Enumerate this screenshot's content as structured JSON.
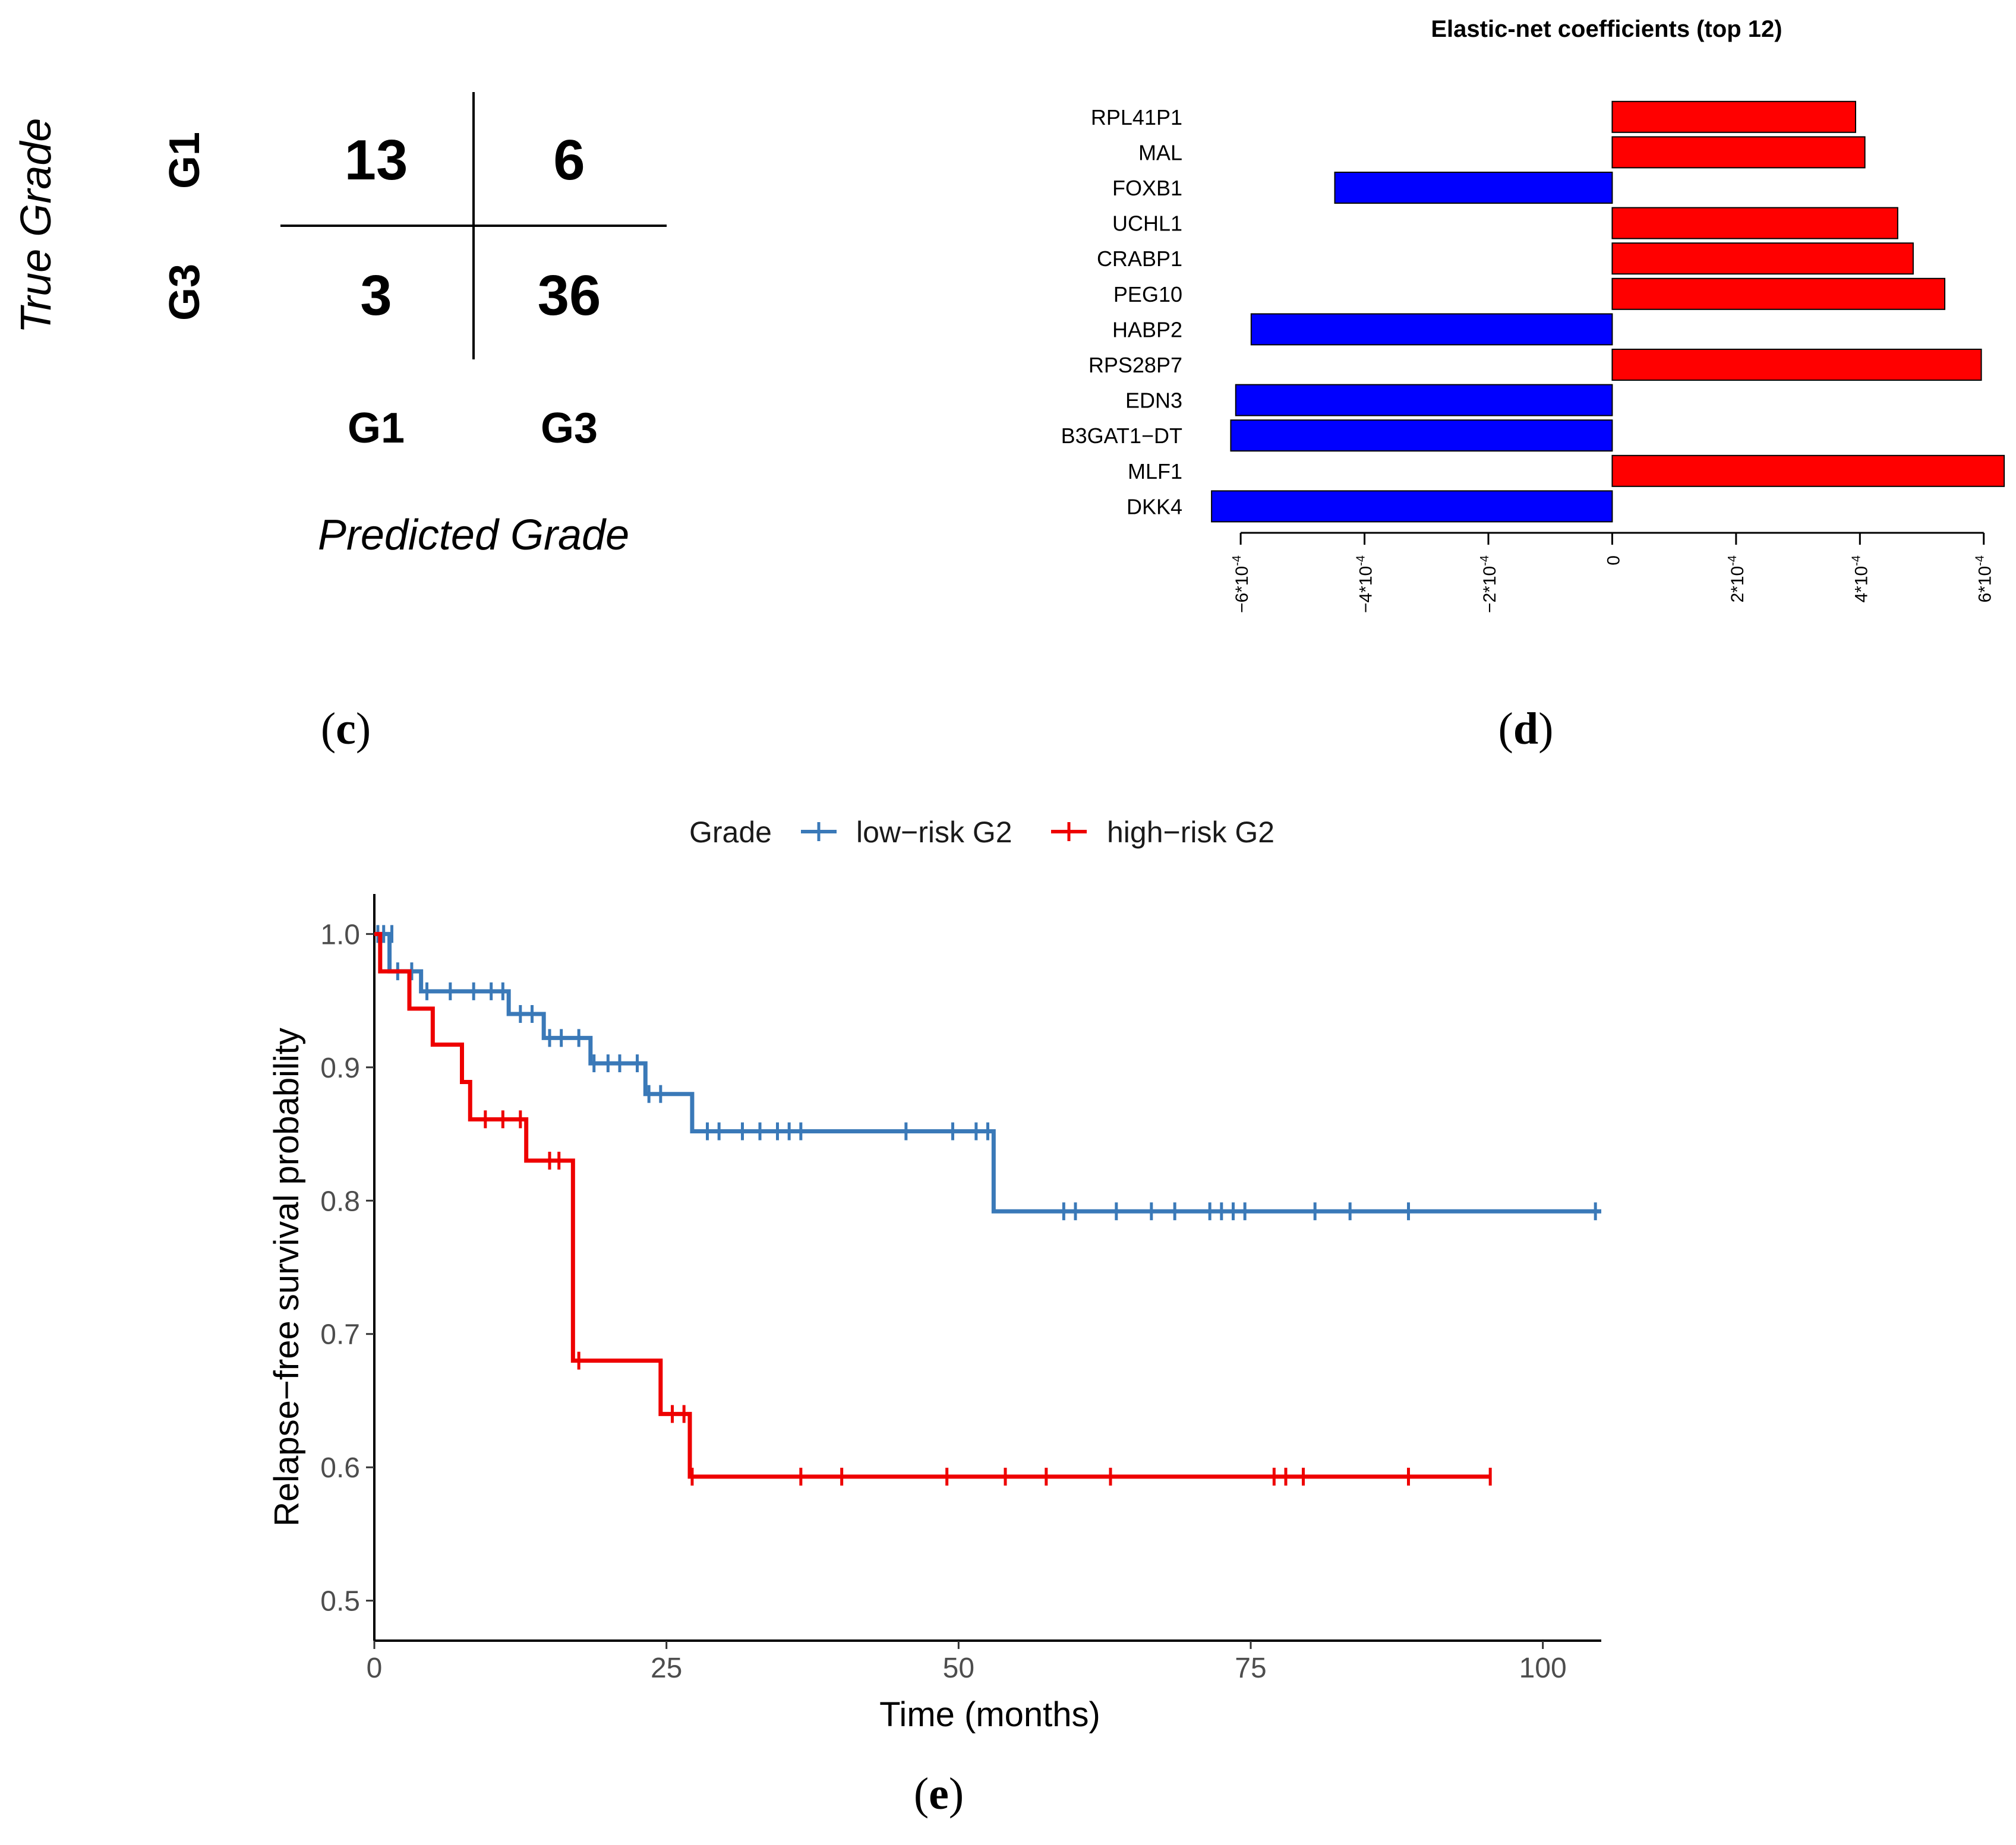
{
  "panels": {
    "c": {
      "label": "(c)",
      "letter": "c",
      "chart_data": {
        "type": "table",
        "title": "",
        "ylabel": "True Grade",
        "xlabel": "Predicted Grade",
        "row_labels": [
          "G1",
          "G3"
        ],
        "col_labels": [
          "G1",
          "G3"
        ],
        "matrix": [
          [
            13,
            6
          ],
          [
            3,
            36
          ]
        ]
      }
    },
    "d": {
      "label": "(d)",
      "letter": "d",
      "chart_data": {
        "type": "bar",
        "orientation": "horizontal",
        "title": "Elastic-net coefficients (top 12)",
        "categories": [
          "RPL41P1",
          "MAL",
          "FOXB1",
          "UCHL1",
          "CRABP1",
          "PEG10",
          "HABP2",
          "RPS28P7",
          "EDN3",
          "B3GAT1−DT",
          "MLF1",
          "DKK4"
        ],
        "values": [
          0.000393,
          0.000408,
          -0.000448,
          0.000461,
          0.000486,
          0.000537,
          -0.000583,
          0.000596,
          -0.000608,
          -0.000616,
          0.000633,
          -0.000647
        ],
        "xlim": [
          -0.00065,
          0.00063
        ],
        "ticks": [
          -0.0006,
          -0.0004,
          -0.0002,
          0,
          0.0002,
          0.0004,
          0.0006
        ],
        "tick_labels": [
          "−6*10",
          "−4*10",
          "−2*10",
          "0",
          "2*10",
          "4*10",
          "6*10"
        ],
        "tick_exponent": "-4",
        "positive_color": "#ff0000",
        "negative_color": "#0000ff"
      }
    },
    "e": {
      "label": "(e)",
      "letter": "e",
      "chart_data": {
        "type": "line",
        "step": true,
        "title": "",
        "xlabel": "Time (months)",
        "ylabel": "Relapse−free survival probability",
        "xlim": [
          0,
          105
        ],
        "ylim": [
          0.47,
          1.03
        ],
        "xticks": [
          0,
          25,
          50,
          75,
          100
        ],
        "yticks": [
          0.5,
          0.6,
          0.7,
          0.8,
          0.9,
          1.0
        ],
        "ytick_labels": [
          "0.5",
          "0.6",
          "0.7",
          "0.8",
          "0.9",
          "1.0"
        ],
        "legend": {
          "title": "Grade",
          "position": "top"
        },
        "series": [
          {
            "name": "low−risk G2",
            "color": "#3a79b8",
            "steps": [
              [
                0,
                1.0
              ],
              [
                1.3,
                0.972
              ],
              [
                4.0,
                0.957
              ],
              [
                11.5,
                0.94
              ],
              [
                14.5,
                0.922
              ],
              [
                18.5,
                0.903
              ],
              [
                23.2,
                0.88
              ],
              [
                27.2,
                0.852
              ],
              [
                53.0,
                0.792
              ],
              [
                105.0,
                0.792
              ]
            ],
            "censored": [
              [
                0.3,
                1.0
              ],
              [
                0.8,
                1.0
              ],
              [
                1.5,
                1.0
              ],
              [
                2.0,
                0.972
              ],
              [
                3.2,
                0.972
              ],
              [
                4.5,
                0.957
              ],
              [
                6.5,
                0.957
              ],
              [
                8.5,
                0.957
              ],
              [
                10.0,
                0.957
              ],
              [
                11.0,
                0.957
              ],
              [
                12.5,
                0.94
              ],
              [
                13.5,
                0.94
              ],
              [
                15.0,
                0.922
              ],
              [
                16.0,
                0.922
              ],
              [
                17.5,
                0.922
              ],
              [
                18.8,
                0.903
              ],
              [
                20.0,
                0.903
              ],
              [
                21.0,
                0.903
              ],
              [
                22.5,
                0.903
              ],
              [
                23.5,
                0.88
              ],
              [
                24.5,
                0.88
              ],
              [
                28.5,
                0.852
              ],
              [
                29.5,
                0.852
              ],
              [
                31.5,
                0.852
              ],
              [
                33.0,
                0.852
              ],
              [
                34.5,
                0.852
              ],
              [
                35.5,
                0.852
              ],
              [
                36.5,
                0.852
              ],
              [
                45.5,
                0.852
              ],
              [
                49.5,
                0.852
              ],
              [
                51.5,
                0.852
              ],
              [
                52.5,
                0.852
              ],
              [
                59.0,
                0.792
              ],
              [
                60.0,
                0.792
              ],
              [
                63.5,
                0.792
              ],
              [
                66.5,
                0.792
              ],
              [
                68.5,
                0.792
              ],
              [
                71.5,
                0.792
              ],
              [
                72.5,
                0.792
              ],
              [
                73.5,
                0.792
              ],
              [
                74.5,
                0.792
              ],
              [
                80.5,
                0.792
              ],
              [
                83.5,
                0.792
              ],
              [
                88.5,
                0.792
              ],
              [
                104.5,
                0.792
              ]
            ]
          },
          {
            "name": "high−risk G2",
            "color": "#ee0000",
            "steps": [
              [
                0,
                1.0
              ],
              [
                0.5,
                0.972
              ],
              [
                3.0,
                0.944
              ],
              [
                5.0,
                0.917
              ],
              [
                7.5,
                0.889
              ],
              [
                8.2,
                0.861
              ],
              [
                13.0,
                0.83
              ],
              [
                17.0,
                0.68
              ],
              [
                24.5,
                0.64
              ],
              [
                27.0,
                0.593
              ],
              [
                95.5,
                0.593
              ]
            ],
            "censored": [
              [
                9.5,
                0.861
              ],
              [
                11.0,
                0.861
              ],
              [
                12.5,
                0.861
              ],
              [
                15.0,
                0.83
              ],
              [
                15.8,
                0.83
              ],
              [
                17.5,
                0.68
              ],
              [
                25.5,
                0.64
              ],
              [
                26.5,
                0.64
              ],
              [
                27.2,
                0.593
              ],
              [
                36.5,
                0.593
              ],
              [
                40.0,
                0.593
              ],
              [
                49.0,
                0.593
              ],
              [
                54.0,
                0.593
              ],
              [
                57.5,
                0.593
              ],
              [
                63.0,
                0.593
              ],
              [
                77.0,
                0.593
              ],
              [
                78.0,
                0.593
              ],
              [
                79.5,
                0.593
              ],
              [
                88.5,
                0.593
              ],
              [
                95.5,
                0.593
              ]
            ]
          }
        ]
      }
    }
  }
}
